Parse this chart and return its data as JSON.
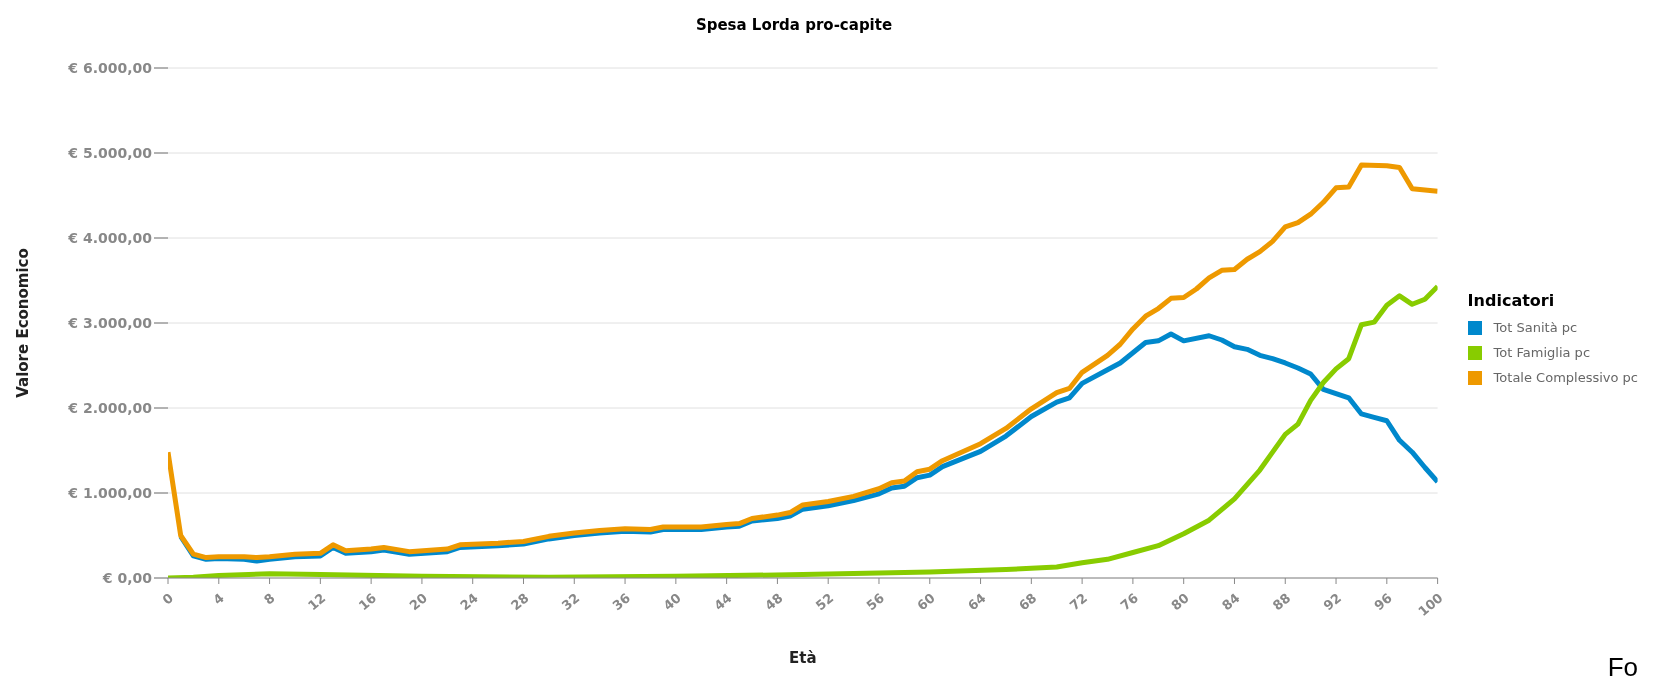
{
  "chart_data": {
    "type": "line",
    "title": "Spesa Lorda pro-capite",
    "xlabel": "Età",
    "ylabel": "Valore Economico",
    "legend_title": "Indicatori",
    "legend": "right",
    "grid": "y",
    "marker": "none",
    "line_style": "solid",
    "xlim": [
      0,
      100
    ],
    "xticks": [
      0,
      4,
      8,
      12,
      16,
      20,
      24,
      28,
      32,
      36,
      40,
      44,
      48,
      52,
      56,
      60,
      64,
      68,
      72,
      76,
      80,
      84,
      88,
      92,
      96,
      100
    ],
    "ylim": [
      0,
      6000
    ],
    "yticks": [
      {
        "value": 0,
        "label": "€ 0,00"
      },
      {
        "value": 1000,
        "label": "€ 1.000,00"
      },
      {
        "value": 2000,
        "label": "€ 2.000,00"
      },
      {
        "value": 3000,
        "label": "€ 3.000,00"
      },
      {
        "value": 4000,
        "label": "€ 4.000,00"
      },
      {
        "value": 5000,
        "label": "€ 5.000,00"
      },
      {
        "value": 6000,
        "label": "€ 6.000,00"
      }
    ],
    "series": [
      {
        "name": "Tot Sanità pc",
        "color": "#0088cc",
        "x": [
          1,
          2,
          3,
          4,
          6,
          7,
          8,
          10,
          12,
          13,
          14,
          16,
          17,
          19,
          22,
          23,
          26,
          28,
          30,
          32,
          34,
          36,
          38,
          39,
          42,
          44,
          45,
          46,
          48,
          49,
          50,
          52,
          54,
          56,
          57,
          58,
          59,
          60,
          61,
          64,
          66,
          68,
          70,
          71,
          72,
          74,
          75,
          76,
          77,
          78,
          79,
          80,
          82,
          83,
          84,
          85,
          86,
          87,
          88,
          89,
          90,
          91,
          92,
          93,
          94,
          95,
          96,
          97,
          98,
          99,
          100
        ],
        "values": [
          490,
          260,
          220,
          230,
          220,
          200,
          220,
          250,
          260,
          360,
          290,
          310,
          330,
          280,
          310,
          360,
          380,
          400,
          460,
          500,
          530,
          550,
          540,
          570,
          570,
          600,
          610,
          670,
          700,
          730,
          810,
          850,
          910,
          990,
          1060,
          1080,
          1180,
          1210,
          1310,
          1490,
          1670,
          1900,
          2070,
          2120,
          2290,
          2450,
          2530,
          2650,
          2770,
          2790,
          2870,
          2790,
          2850,
          2800,
          2720,
          2690,
          2620,
          2580,
          2530,
          2470,
          2400,
          2220,
          2170,
          2120,
          1930,
          1890,
          1850,
          1620,
          1480,
          1300,
          1130
        ]
      },
      {
        "name": "Tot Famiglia pc",
        "color": "#88cc00",
        "x": [
          0,
          2,
          4,
          8,
          12,
          20,
          30,
          40,
          50,
          60,
          66,
          70,
          72,
          74,
          76,
          78,
          80,
          82,
          84,
          86,
          88,
          89,
          90,
          91,
          92,
          93,
          94,
          95,
          96,
          97,
          98,
          99,
          100
        ],
        "values": [
          0,
          10,
          30,
          50,
          40,
          20,
          10,
          20,
          40,
          70,
          100,
          130,
          180,
          220,
          300,
          380,
          520,
          680,
          930,
          1270,
          1690,
          1810,
          2090,
          2300,
          2460,
          2580,
          2980,
          3010,
          3210,
          3320,
          3220,
          3280,
          3430
        ]
      },
      {
        "name": "Totale Complessivo pc",
        "color": "#ee9900",
        "x": [
          0,
          1,
          2,
          3,
          4,
          6,
          7,
          8,
          10,
          12,
          13,
          14,
          16,
          17,
          19,
          22,
          23,
          26,
          28,
          30,
          32,
          34,
          36,
          38,
          39,
          42,
          44,
          45,
          46,
          48,
          49,
          50,
          52,
          54,
          56,
          57,
          58,
          59,
          60,
          61,
          64,
          66,
          68,
          70,
          71,
          72,
          74,
          75,
          76,
          77,
          78,
          79,
          80,
          81,
          82,
          83,
          84,
          85,
          86,
          87,
          88,
          89,
          90,
          91,
          92,
          93,
          94,
          96,
          97,
          98,
          100
        ],
        "values": [
          1480,
          500,
          280,
          240,
          250,
          250,
          240,
          250,
          280,
          290,
          390,
          320,
          340,
          360,
          310,
          340,
          390,
          410,
          430,
          490,
          530,
          560,
          580,
          570,
          600,
          600,
          630,
          640,
          700,
          740,
          770,
          860,
          900,
          960,
          1050,
          1120,
          1140,
          1250,
          1280,
          1380,
          1580,
          1760,
          1990,
          2180,
          2230,
          2420,
          2620,
          2750,
          2930,
          3080,
          3170,
          3290,
          3300,
          3400,
          3530,
          3620,
          3630,
          3750,
          3840,
          3960,
          4130,
          4180,
          4280,
          4420,
          4590,
          4600,
          4860,
          4850,
          4830,
          4580,
          4550
        ]
      }
    ],
    "annotations": [
      "Fo"
    ]
  }
}
